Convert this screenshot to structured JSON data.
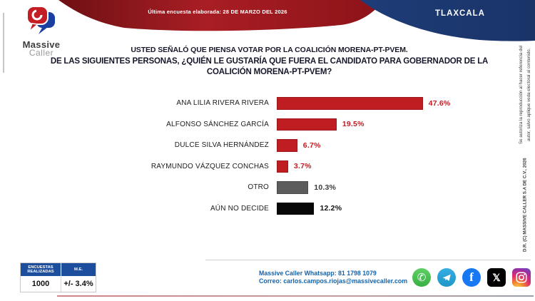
{
  "header": {
    "banner_text": "Última encuesta elaborada: 28 DE MARZO DEL 2026",
    "region": "TLAXCALA",
    "logo": {
      "word1": "Massive",
      "word2": "Caller"
    }
  },
  "title": {
    "line1": "USTED SEÑALÓ QUE PIENSA VOTAR POR LA COALICIÓN MORENA-PT-PVEM.",
    "line2": "DE LAS SIGUIENTES PERSONAS, ¿QUIÉN LE GUSTARÍA QUE FUERA EL CANDIDATO PARA GOBERNADOR DE LA COALICIÓN MORENA-PT-PVEM?"
  },
  "chart_data": {
    "type": "bar",
    "orientation": "horizontal",
    "categories": [
      "ANA LILIA RIVERA RIVERA",
      "ALFONSO SÁNCHEZ GARCÍA",
      "DULCE SILVA HERNÁNDEZ",
      "RAYMUNDO VÁZQUEZ CONCHAS",
      "OTRO",
      "AÚN NO DECIDE"
    ],
    "values": [
      47.6,
      19.5,
      6.7,
      3.7,
      10.3,
      12.2
    ],
    "value_labels": [
      "47.6%",
      "19.5%",
      "6.7%",
      "3.7%",
      "10.3%",
      "12.2%"
    ],
    "bar_colors": [
      "#c01d23",
      "#c01d23",
      "#c01d23",
      "#c01d23",
      "#5c5c5c",
      "#070707"
    ],
    "value_label_colors": [
      "#c21b21",
      "#c21b21",
      "#c21b21",
      "#c21b21",
      "#3a3a3a",
      "#111111"
    ],
    "xlim": [
      0,
      50
    ],
    "grid": false,
    "legend": false,
    "title": "",
    "xlabel": "",
    "ylabel": ""
  },
  "stats": {
    "headers": [
      "ENCUESTAS REALIZADAS",
      "M.E."
    ],
    "values": [
      "1000",
      "+/- 3.4%"
    ]
  },
  "contact": {
    "line1": "Massive Caller Whatsapp: 81 1798 1079",
    "line2": "Correo: carlos.campos.riojas@massivecaller.com"
  },
  "social_icons": [
    "whatsapp-icon",
    "telegram-icon",
    "facebook-icon",
    "x-icon",
    "instagram-icon"
  ],
  "social_glyphs": {
    "whatsapp": "✆",
    "facebook": "f",
    "x": "𝕏"
  },
  "legal": {
    "line1": "D.R. (C) MASSIVE CALLER S.A DE C.V., 2026",
    "line2": "Se autoriza la reproducción al hacer referencia del autor, salvo aplique veda electoral al contenido."
  },
  "colors": {
    "banner_red": "#9c161c",
    "banner_navy": "#1e3c78",
    "bar_red": "#c01d23",
    "table_header_blue": "#1d4e9e",
    "contact_blue": "#1463ac"
  }
}
